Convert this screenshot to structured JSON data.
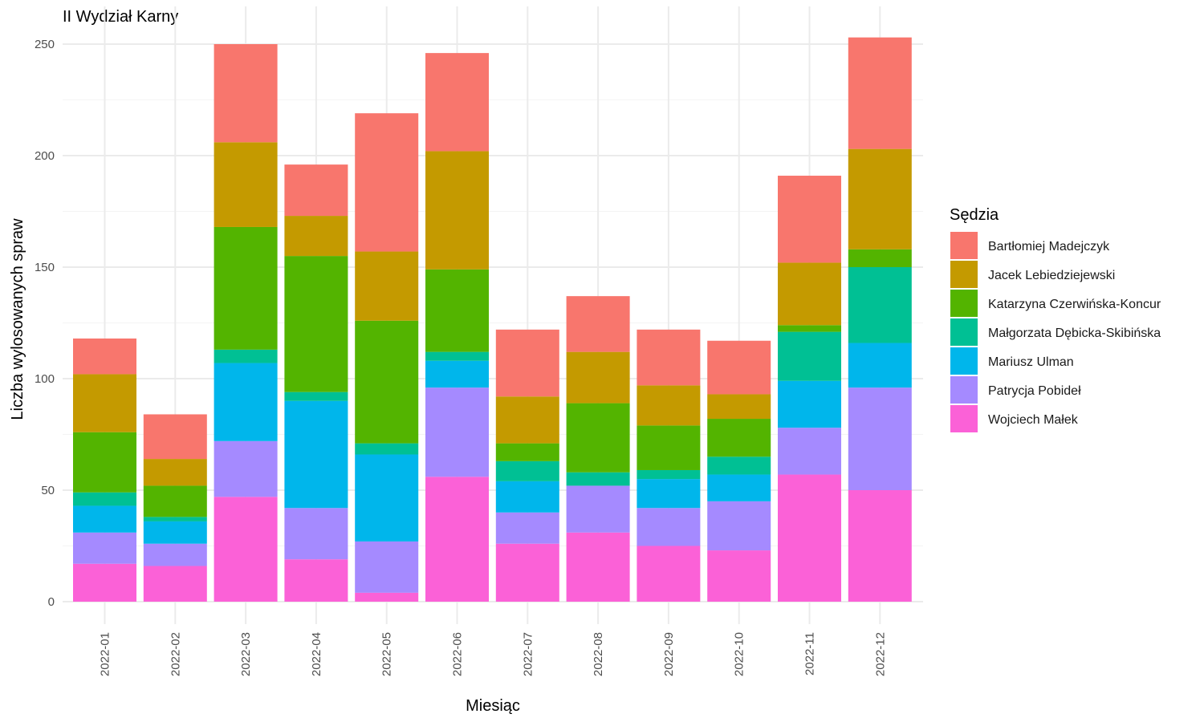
{
  "chart_data": {
    "type": "bar",
    "stacked": true,
    "title": "II Wydział Karny",
    "xlabel": "Miesiąc",
    "ylabel": "Liczba wylosowanych spraw",
    "ylim": [
      0,
      260
    ],
    "yticks": [
      0,
      50,
      100,
      150,
      200,
      250
    ],
    "grid": true,
    "legend": {
      "title": "Sędzia",
      "position": "right"
    },
    "categories": [
      "2022-01",
      "2022-02",
      "2022-03",
      "2022-04",
      "2022-05",
      "2022-06",
      "2022-07",
      "2022-08",
      "2022-09",
      "2022-10",
      "2022-11",
      "2022-12"
    ],
    "series": [
      {
        "name": "Bartłomiej Madejczyk",
        "color": "#F8766D",
        "values": [
          16,
          20,
          44,
          23,
          62,
          44,
          30,
          25,
          25,
          24,
          39,
          50
        ]
      },
      {
        "name": "Jacek Lebiedziejewski",
        "color": "#C49A00",
        "values": [
          26,
          12,
          38,
          18,
          31,
          53,
          21,
          23,
          18,
          11,
          28,
          45
        ]
      },
      {
        "name": "Katarzyna Czerwińska-Koncur",
        "color": "#53B400",
        "values": [
          27,
          14,
          55,
          61,
          55,
          37,
          8,
          31,
          20,
          17,
          3,
          8
        ]
      },
      {
        "name": "Małgorzata Dębicka-Skibińska",
        "color": "#00C094",
        "values": [
          6,
          2,
          6,
          4,
          5,
          4,
          9,
          6,
          4,
          8,
          22,
          34
        ]
      },
      {
        "name": "Mariusz Ulman",
        "color": "#00B6EB",
        "values": [
          12,
          10,
          35,
          48,
          39,
          12,
          14,
          0,
          13,
          12,
          21,
          20
        ]
      },
      {
        "name": "Patrycja Pobideł",
        "color": "#A58AFF",
        "values": [
          14,
          10,
          25,
          23,
          23,
          40,
          14,
          21,
          17,
          22,
          21,
          46
        ]
      },
      {
        "name": "Wojciech Małek",
        "color": "#FB61D7",
        "values": [
          17,
          16,
          47,
          19,
          4,
          56,
          26,
          31,
          25,
          23,
          57,
          50
        ]
      }
    ]
  }
}
